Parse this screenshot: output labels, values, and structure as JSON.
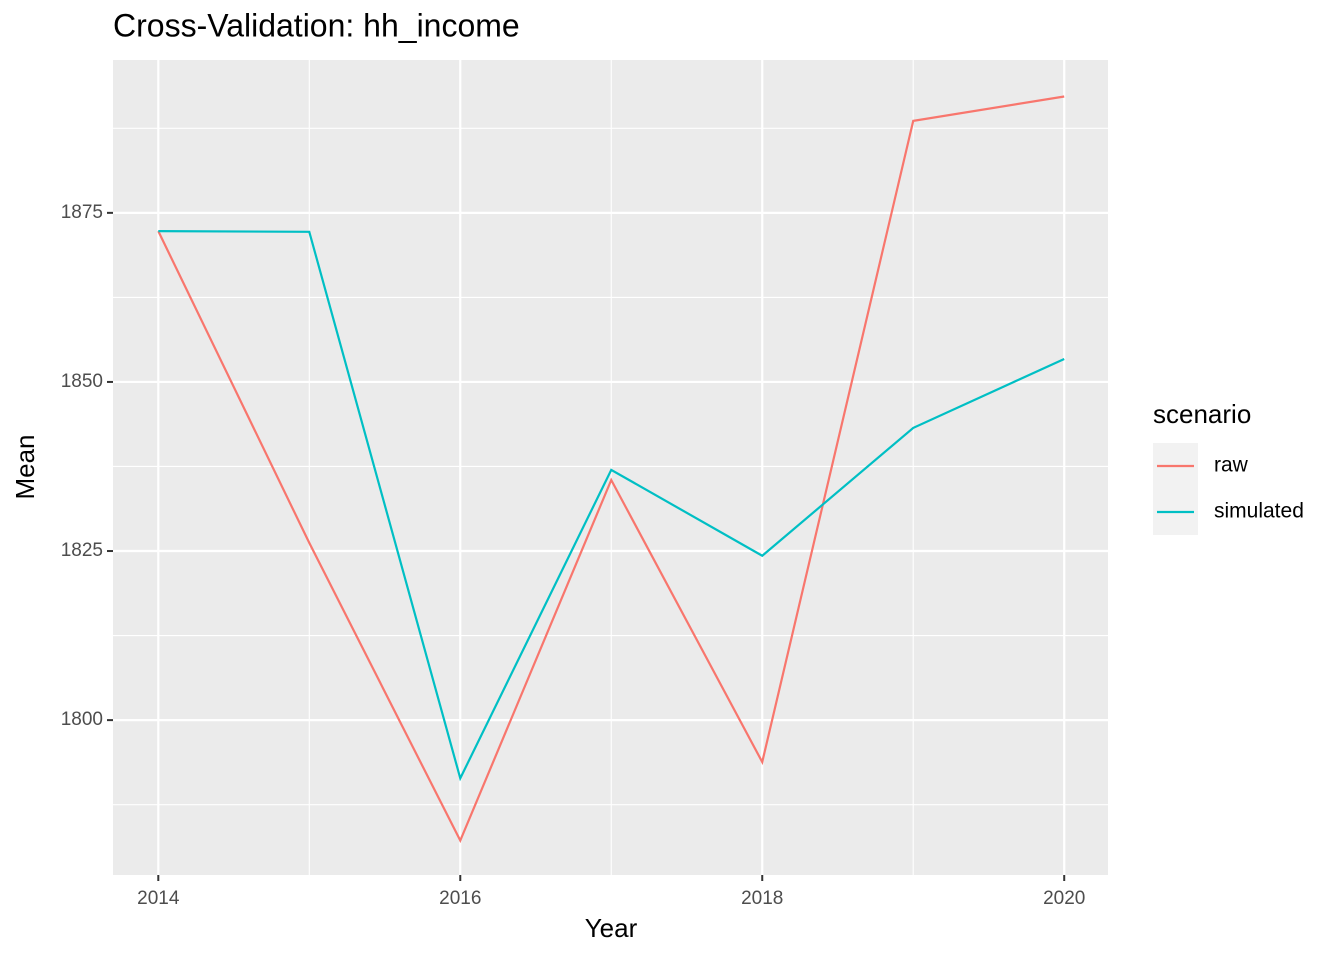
{
  "chart_data": {
    "type": "line",
    "title": "Cross-Validation: hh_income",
    "x_label": "Year",
    "y_label": "Mean",
    "x": [
      2014,
      2015,
      2016,
      2017,
      2018,
      2019,
      2020
    ],
    "series": [
      {
        "name": "raw",
        "color": "#f8766d",
        "values": [
          1872.3,
          1826.2,
          1782.2,
          1835.5,
          1793.8,
          1888.6,
          1892.2
        ]
      },
      {
        "name": "simulated",
        "color": "#00bfc4",
        "values": [
          1872.3,
          1872.2,
          1791.4,
          1837.0,
          1824.3,
          1843.2,
          1853.4
        ]
      }
    ],
    "xlim": [
      2013.7,
      2020.29
    ],
    "xticks": [
      2014,
      2016,
      2018,
      2020
    ],
    "x_minor_ticks": [
      2015,
      2017,
      2019
    ],
    "ylim": [
      1777.1,
      1897.6
    ],
    "yticks": [
      1800,
      1825,
      1850,
      1875
    ],
    "y_minor_ticks": [
      1787.5,
      1812.5,
      1837.5,
      1862.5,
      1887.5
    ],
    "grid": true,
    "legend_title": "scenario",
    "legend_position": "right"
  }
}
